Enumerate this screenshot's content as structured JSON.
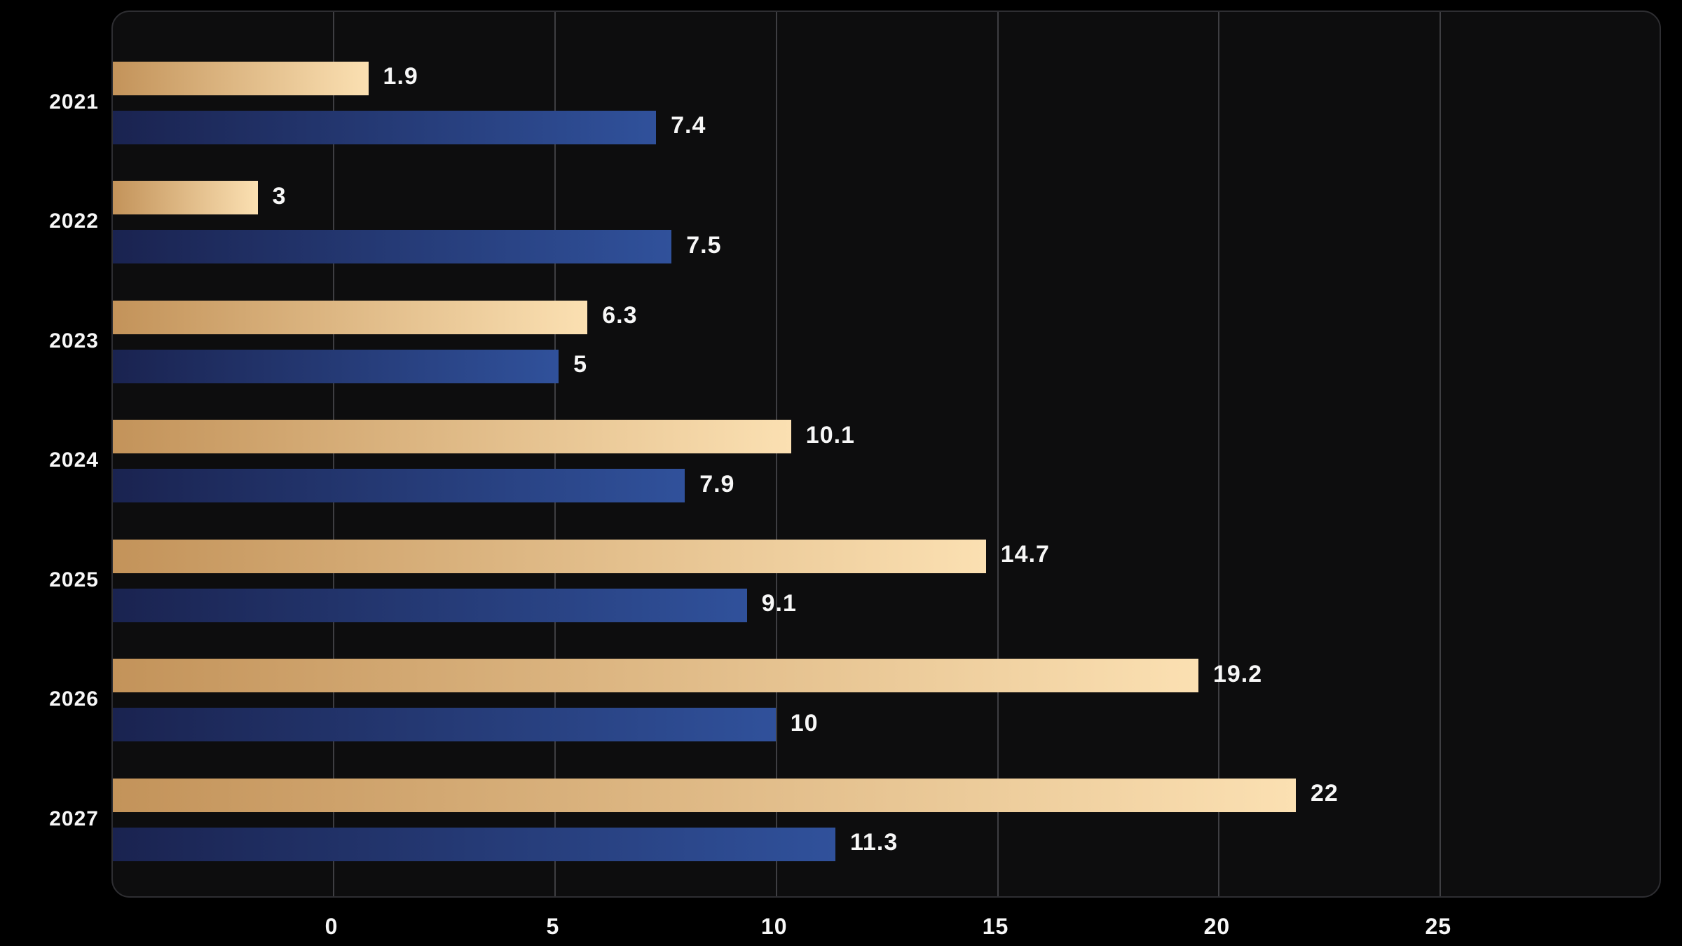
{
  "colors": {
    "background": "#000000",
    "plot_background": "#0d0d0e",
    "plot_border": "#2e2e32",
    "gridline": "#3e3e42",
    "label_text": "#f7f7f7",
    "gold_gradient_start": "#c3935a",
    "gold_gradient_end": "#fbe0b2",
    "blue_gradient_start": "#1a2350",
    "blue_gradient_end": "#30519b"
  },
  "chart_data": {
    "type": "bar",
    "orientation": "horizontal",
    "title": "",
    "xlabel": "",
    "ylabel": "",
    "categories": [
      "2021",
      "2022",
      "2023",
      "2024",
      "2025",
      "2026",
      "2027"
    ],
    "series": [
      {
        "name": "gold-series",
        "values": [
          1.9,
          3,
          6.3,
          10.1,
          14.7,
          19.2,
          22
        ],
        "labels": [
          "1.9",
          "3",
          "6.3",
          "10.1",
          "14.7",
          "19.2",
          "22"
        ],
        "gradient": [
          "#c3935a",
          "#fbe0b2"
        ],
        "rendered_end_units": [
          0.8,
          -1.7,
          5.75,
          10.35,
          14.75,
          19.55,
          21.75
        ]
      },
      {
        "name": "blue-series",
        "values": [
          7.4,
          7.5,
          5,
          7.9,
          9.1,
          10,
          11.3
        ],
        "labels": [
          "7.4",
          "7.5",
          "5",
          "7.9",
          "9.1",
          "10",
          "11.3"
        ],
        "gradient": [
          "#1a2350",
          "#30519b"
        ],
        "rendered_end_units": [
          7.3,
          7.65,
          5.1,
          7.95,
          9.35,
          10.0,
          11.35
        ]
      }
    ],
    "x_ticks": [
      "0",
      "5",
      "10",
      "15",
      "20",
      "25"
    ],
    "x_tick_values": [
      0,
      5,
      10,
      15,
      20,
      25
    ],
    "xlim": [
      -5,
      30
    ],
    "grid": "vertical-only",
    "legend": "none",
    "bars_anchor": "left-plot-edge",
    "value_labels_position": "right-of-bar-end"
  }
}
